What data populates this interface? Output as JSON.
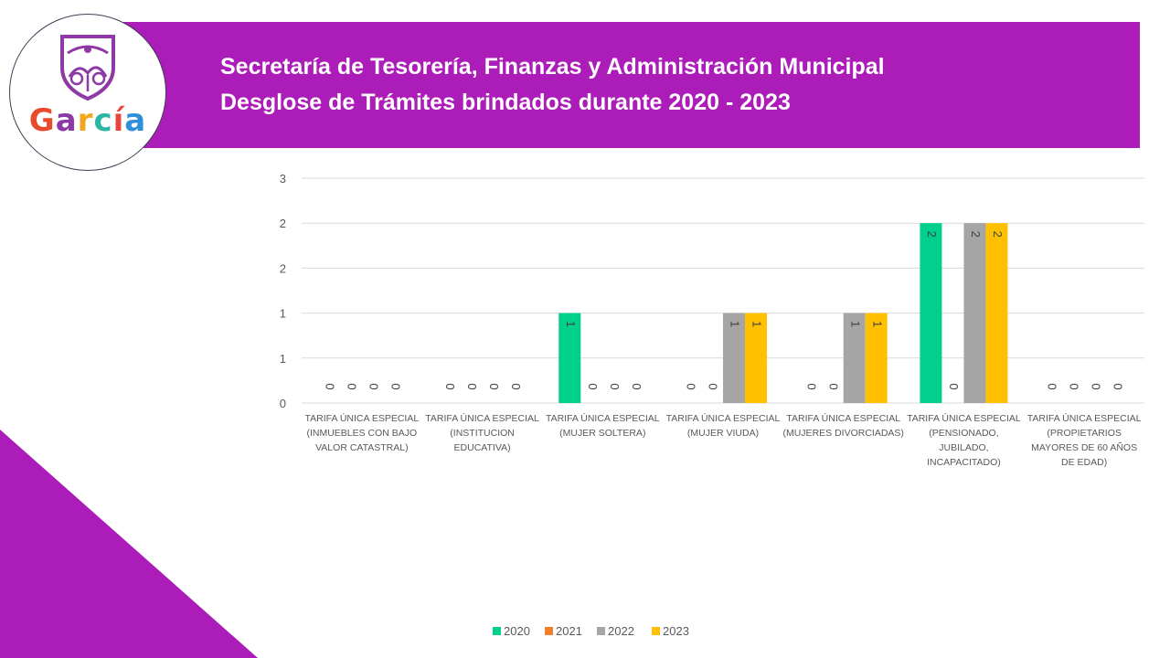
{
  "header": {
    "title_line1": "Secretaría de Tesorería, Finanzas y Administración Municipal",
    "title_line2": "Desglose de Trámites brindados durante 2020 - 2023",
    "banner_color": "#ac1cb8"
  },
  "logo": {
    "wordmark": "García",
    "letters": [
      {
        "ch": "G",
        "color": "#e84a2c"
      },
      {
        "ch": "a",
        "color": "#8e3aa6"
      },
      {
        "ch": "r",
        "color": "#f2a81d"
      },
      {
        "ch": "c",
        "color": "#2bb7a3"
      },
      {
        "ch": "í",
        "color": "#e8463c"
      },
      {
        "ch": "a",
        "color": "#2f8fd8"
      }
    ],
    "crest_icon": "shield-crest-icon"
  },
  "chart_data": {
    "type": "bar",
    "categories": [
      [
        "TARIFA ÚNICA ESPECIAL",
        "(INMUEBLES CON BAJO",
        "VALOR CATASTRAL)"
      ],
      [
        "TARIFA ÚNICA ESPECIAL",
        "(INSTITUCION",
        "EDUCATIVA)"
      ],
      [
        "TARIFA ÚNICA ESPECIAL",
        "(MUJER SOLTERA)"
      ],
      [
        "TARIFA ÚNICA ESPECIAL",
        "(MUJER VIUDA)"
      ],
      [
        "TARIFA ÚNICA ESPECIAL",
        "(MUJERES DIVORCIADAS)"
      ],
      [
        "TARIFA ÚNICA ESPECIAL",
        "(PENSIONADO,",
        "JUBILADO,",
        "INCAPACITADO)"
      ],
      [
        "TARIFA ÚNICA ESPECIAL",
        "(PROPIETARIOS",
        "MAYORES DE 60 AÑOS",
        "DE EDAD)"
      ]
    ],
    "series": [
      {
        "name": "2020",
        "color": "#00d08c",
        "values": [
          0,
          0,
          1,
          0,
          0,
          2,
          0
        ]
      },
      {
        "name": "2021",
        "color": "#f07f2a",
        "values": [
          0,
          0,
          0,
          0,
          0,
          0,
          0
        ]
      },
      {
        "name": "2022",
        "color": "#a5a5a5",
        "values": [
          0,
          0,
          0,
          1,
          1,
          2,
          0
        ]
      },
      {
        "name": "2023",
        "color": "#ffc000",
        "values": [
          0,
          0,
          0,
          1,
          1,
          2,
          0
        ]
      }
    ],
    "y_ticks": [
      {
        "value": 0,
        "label": "0"
      },
      {
        "value": 0.5,
        "label": "1"
      },
      {
        "value": 1,
        "label": "1"
      },
      {
        "value": 1.5,
        "label": "2"
      },
      {
        "value": 2,
        "label": "2"
      },
      {
        "value": 2.5,
        "label": "3"
      }
    ],
    "ylim": [
      0,
      2.5
    ],
    "grid": true,
    "legend_position": "bottom",
    "data_labels": "rotated-inside"
  }
}
